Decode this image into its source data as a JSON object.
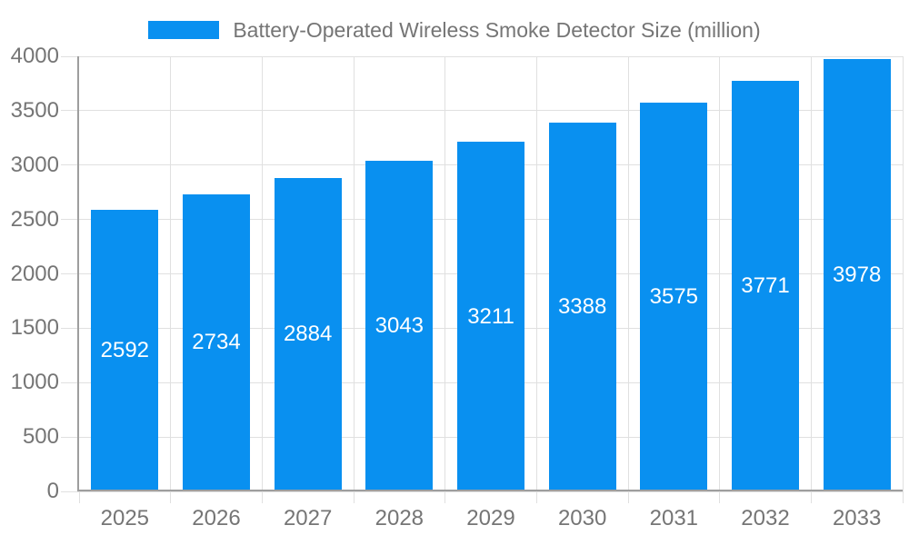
{
  "legend": {
    "label": "Battery-Operated Wireless Smoke Detector Size (million)"
  },
  "chart_data": {
    "type": "bar",
    "categories": [
      "2025",
      "2026",
      "2027",
      "2028",
      "2029",
      "2030",
      "2031",
      "2032",
      "2033"
    ],
    "series": [
      {
        "name": "Battery-Operated Wireless Smoke Detector Size (million)",
        "values": [
          2592,
          2734,
          2884,
          3043,
          3211,
          3388,
          3575,
          3771,
          3978
        ]
      }
    ],
    "xlabel": "",
    "ylabel": "",
    "ylim": [
      0,
      4000
    ],
    "ytick_step": 500,
    "ytick_labels": [
      "0",
      "500",
      "1000",
      "1500",
      "2000",
      "2500",
      "3000",
      "3500",
      "4000"
    ],
    "grid": true,
    "legend_position": "top-center",
    "value_label_position": "inside-center"
  },
  "colors": {
    "bar": "#0990f0",
    "tick_text": "#757575",
    "legend_text": "#757575",
    "grid": "#e0e0e0",
    "axis": "#9e9e9e",
    "value_text": "#ffffff",
    "background": "#ffffff"
  }
}
